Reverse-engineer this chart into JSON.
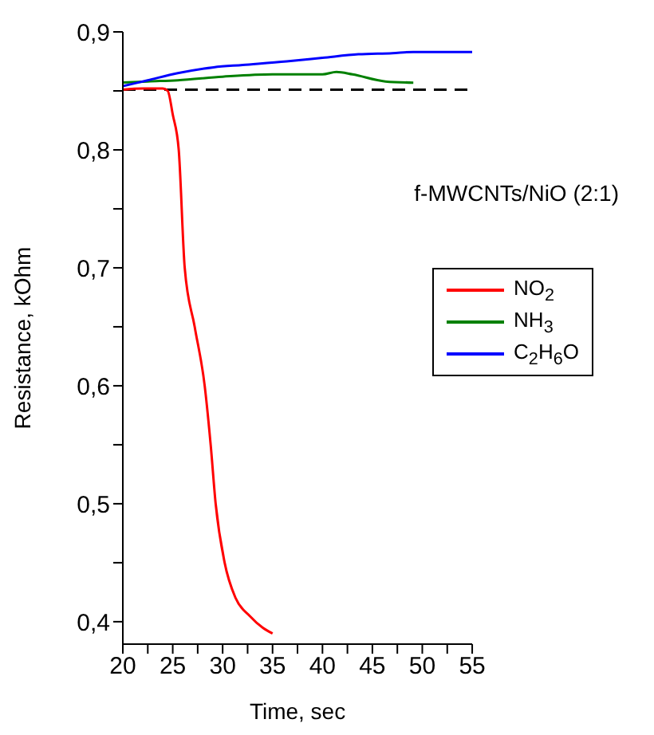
{
  "chart_data": {
    "type": "line",
    "xlabel": "Time, sec",
    "ylabel": "Resistance, kOhm",
    "annotations": [
      "f-MWCNTs/NiO (2:1)"
    ],
    "xlim": [
      20,
      55
    ],
    "xticks": [
      20,
      {
        "value": 22.5,
        "label": null
      },
      25,
      {
        "value": 27.5,
        "label": null
      },
      30,
      {
        "value": 32.5,
        "label": null
      },
      35,
      {
        "value": 37.5,
        "label": null
      },
      40,
      {
        "value": 42.5,
        "label": null
      },
      45,
      {
        "value": 47.5,
        "label": null
      },
      50,
      {
        "value": 52.5,
        "label": null
      },
      55
    ],
    "ylim": [
      0.381,
      0.9
    ],
    "yticks": [
      {
        "value": 0.4,
        "label": "0,4"
      },
      {
        "value": 0.45,
        "label": null
      },
      {
        "value": 0.5,
        "label": "0,5"
      },
      {
        "value": 0.55,
        "label": null
      },
      {
        "value": 0.6,
        "label": "0,6"
      },
      {
        "value": 0.65,
        "label": null
      },
      {
        "value": 0.7,
        "label": "0,7"
      },
      {
        "value": 0.75,
        "label": null
      },
      {
        "value": 0.8,
        "label": "0,8"
      },
      {
        "value": 0.85,
        "label": null
      },
      {
        "value": 0.9,
        "label": "0,9"
      }
    ],
    "grid": false,
    "legend": "right",
    "line_style": "solid",
    "marker": "none",
    "ref_lines": [
      {
        "axis": "y",
        "value": 0.851,
        "color": "#000000",
        "line_style": "dashed"
      }
    ],
    "series": [
      {
        "name": "NO$_{2}$",
        "color": "#ff0000",
        "x": [
          20,
          22,
          24,
          24.5,
          25,
          25.6,
          26.2,
          27.2,
          28.2,
          28.8,
          29.3,
          30.2,
          31.3,
          32.7,
          34,
          35
        ],
        "values": [
          0.851,
          0.852,
          0.852,
          0.85,
          0.83,
          0.8,
          0.7,
          0.65,
          0.6,
          0.55,
          0.5,
          0.45,
          0.42,
          0.405,
          0.395,
          0.39
        ]
      },
      {
        "name": "NH$_{3}$",
        "color": "#008000",
        "x": [
          20,
          22.5,
          25.5,
          30,
          35,
          40,
          41.4,
          43,
          46.3,
          49.1
        ],
        "values": [
          0.857,
          0.858,
          0.859,
          0.862,
          0.864,
          0.864,
          0.866,
          0.864,
          0.858,
          0.857
        ]
      },
      {
        "name": "C$_{2}$H$_{6}$O",
        "color": "#0000ff",
        "x": [
          20,
          22.5,
          25.5,
          29.1,
          32,
          36.4,
          40,
          43.6,
          47,
          49.1,
          55
        ],
        "values": [
          0.854,
          0.859,
          0.865,
          0.87,
          0.872,
          0.875,
          0.878,
          0.881,
          0.882,
          0.883,
          0.883
        ]
      }
    ]
  }
}
